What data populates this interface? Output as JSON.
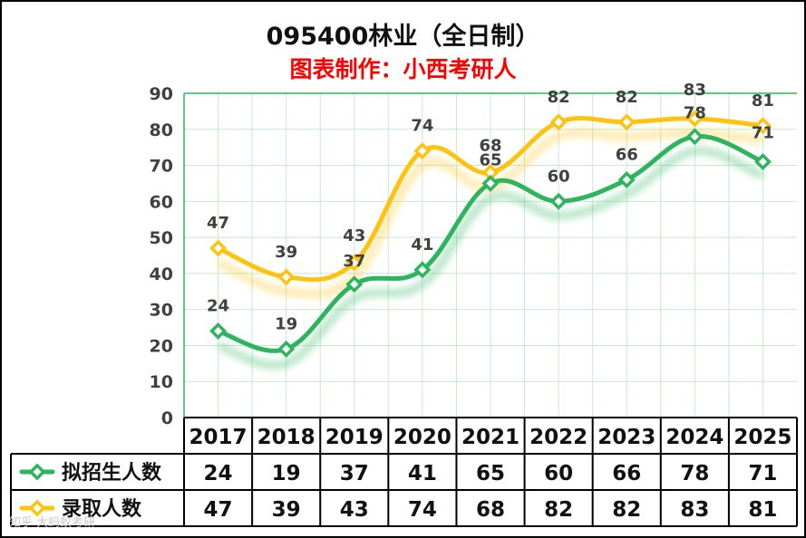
{
  "title": "095400林业（全日制）",
  "subtitle": "图表制作：小西考研人",
  "watermark": "知乎 大蚂蚁考研",
  "colors": {
    "series1": "#2db55d",
    "series2": "#ffc20e",
    "grid": "#c9e8d2",
    "axis": "#2db55d",
    "label": "#404040"
  },
  "chart_data": {
    "type": "line",
    "categories": [
      "2017",
      "2018",
      "2019",
      "2020",
      "2021",
      "2022",
      "2023",
      "2024",
      "2025"
    ],
    "series": [
      {
        "name": "拟招生人数",
        "values": [
          24,
          19,
          37,
          41,
          65,
          60,
          66,
          78,
          71
        ]
      },
      {
        "name": "录取人数",
        "values": [
          47,
          39,
          43,
          74,
          68,
          82,
          82,
          83,
          81
        ]
      }
    ],
    "ylim": [
      0,
      90
    ],
    "yticks": [
      "0",
      "10",
      "20",
      "30",
      "40",
      "50",
      "60",
      "70",
      "80",
      "90"
    ],
    "grid": true,
    "legend": "data table"
  }
}
